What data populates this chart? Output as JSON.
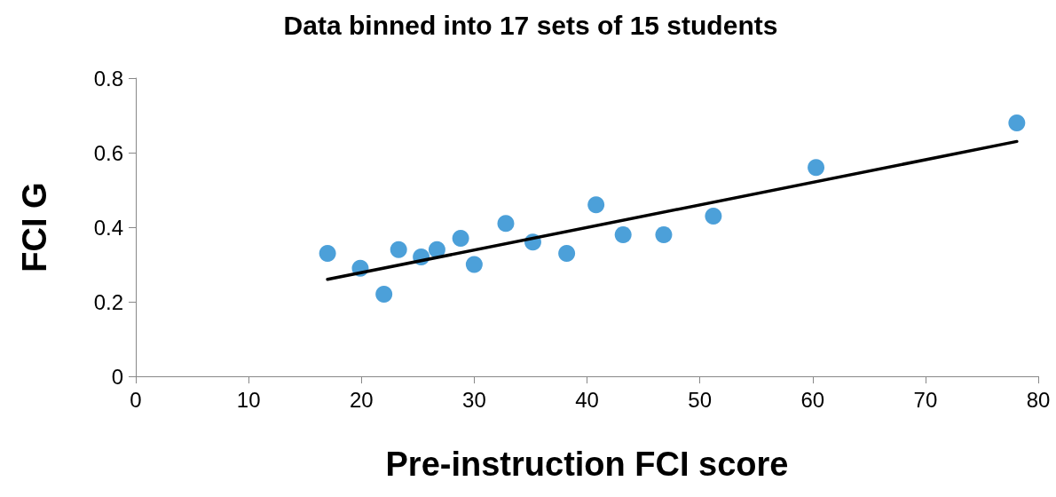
{
  "chart_data": {
    "type": "scatter",
    "title": "Data binned into 17 sets of 15 students",
    "xlabel": "Pre-instruction FCI score",
    "ylabel": "FCI G",
    "series": [
      {
        "color": "#1f88d0",
        "x": [
          17.0,
          19.9,
          22.0,
          23.3,
          25.3,
          26.7,
          28.8,
          30.0,
          32.8,
          35.2,
          38.2,
          40.8,
          43.2,
          46.8,
          51.2,
          60.3,
          78.1
        ],
        "values": [
          0.33,
          0.29,
          0.22,
          0.34,
          0.32,
          0.34,
          0.37,
          0.3,
          0.41,
          0.36,
          0.33,
          0.46,
          0.38,
          0.38,
          0.43,
          0.56,
          0.68
        ]
      },
      {
        "type": "line",
        "color": "#000000",
        "x": [
          17.0,
          78.1
        ],
        "values": [
          0.26,
          0.63
        ],
        "marker": "none"
      }
    ],
    "xlim": [
      0,
      80
    ],
    "xticks": [
      0,
      10,
      20,
      30,
      40,
      50,
      60,
      70,
      80
    ],
    "ylim": [
      0,
      0.8
    ],
    "yticks": [
      0,
      0.2,
      0.4,
      0.6,
      0.8
    ],
    "grid": false,
    "marker": "circle"
  }
}
